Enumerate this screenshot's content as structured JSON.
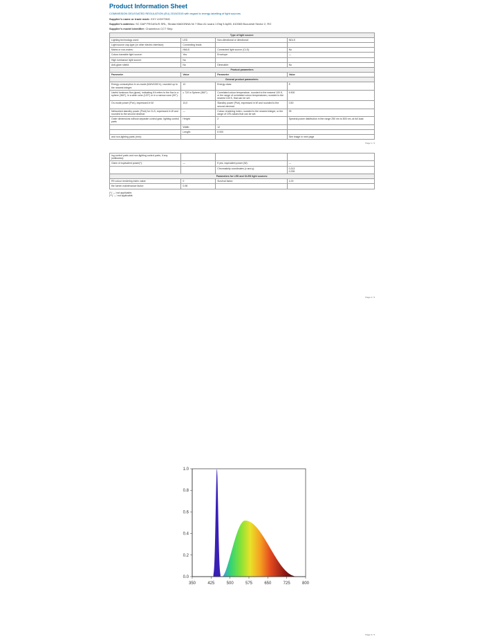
{
  "title": "Product Information Sheet",
  "intro": "COMMISSION DELEGATED REGULATION (EU) 2019/2015 with regard to energy labelling of light sources",
  "supplier_name_label": "Supplier's name or trade mark:",
  "supplier_name": "XXY LIGHTING",
  "supplier_addr_label": "Supplier's address:",
  "supplier_addr": "SC DAP PEGASUS SRL, Strada MADONNA Nr 7 Bloc A1 scara 1 Etaj 5 Ap55, 610083 Bucuresti Sector 2, RO",
  "model_label": "Supplier's model identifier:",
  "model": "Chameleon CCT Strip",
  "section1": "Type of light source:",
  "rows1": [
    [
      "Lighting technology used:",
      "LED",
      "Non-directional or directional:",
      "NDLS"
    ],
    [
      "Light source cap-type (or other electric interface):",
      "Connecting leads",
      "",
      ""
    ],
    [
      "Mains or non-mains:",
      "NMLS",
      "Connected light source (CLS):",
      "No"
    ],
    [
      "Colour-tuneable light source:",
      "Yes",
      "Envelope:",
      "—"
    ],
    [
      "High luminance light source:",
      "No",
      "",
      ""
    ],
    [
      "Anti-glare shield:",
      "No",
      "Dimmable:",
      "No"
    ]
  ],
  "section2": "Product parameters",
  "header2": [
    "Parameter",
    "Value",
    "Parameter",
    "Value"
  ],
  "subsection2": "General product parameters:",
  "rows2": [
    [
      "Energy consumption in on-mode (kWh/1000 h), rounded up to the nearest integer:",
      "10",
      "Energy class:",
      "E"
    ],
    [
      "Useful luminous flux (ɸuse), indicating if it refers to the flux in a sphere (360°), in a wide cone (120°) or in a narrow cone (90°):",
      "≥ 720 in Sphere (360°)",
      "Correlated colour temperature, rounded to the nearest 100 K, or the range of correlated colour temperatures, rounded to the nearest 100 K, that can be set:",
      "6 500"
    ],
    [
      "On-mode power (Pon), expressed in W:",
      "10,0",
      "Standby power (Psb), expressed in W and rounded to the second decimal:",
      "0,50"
    ],
    [
      "Networked standby power (Pnet) for CLS, expressed in W and rounded to the second decimal:",
      "—",
      "Colour rendering index, rounded to the nearest integer, or the range of CRI-values that can be set:",
      "93"
    ],
    [
      "Outer dimensions without separate control gear, lighting control parts",
      "Height:",
      "2",
      "Spectral power distribution in the range 250 nm to 800 nm, at full load:"
    ],
    [
      "",
      "Width:",
      "12",
      ""
    ],
    [
      "",
      "Length:",
      "5 000",
      ""
    ]
  ],
  "spd_note": "See image in next page",
  "rows3": [
    [
      "ing control parts and non-lighting control parts, if any (millimetre):",
      "",
      "",
      ""
    ],
    [
      "Claim of equivalent power(*):",
      "—",
      "If yes, equivalent power (W):",
      "—"
    ],
    [
      "",
      "",
      "Chromaticity coordinates (x and y):",
      "0,313\n0,339"
    ]
  ],
  "section3": "Parameters for LED and OLED light sources:",
  "rows4": [
    [
      "R9 colour rendering index value:",
      "0",
      "Survival factor:",
      "1,00"
    ],
    [
      "the lumen maintenance factor:",
      "0,96",
      "",
      ""
    ]
  ],
  "footnote": "(*) '—':not applicable;\n(**) '—':not applicable;",
  "pg1": "Page 1 / 3",
  "pg2": "Page 2 / 3",
  "pg3": "Page 3 / 3",
  "chart": {
    "type": "spectral-area",
    "background_color": "#ffffff",
    "plot_border_color": "#333333",
    "axis_font_size": 6,
    "xlim": [
      350,
      800
    ],
    "xticks": [
      350,
      425,
      500,
      575,
      650,
      725,
      800
    ],
    "ylim": [
      0,
      1.0
    ],
    "yticks": [
      0.0,
      0.2,
      0.4,
      0.6,
      0.8,
      1.0
    ],
    "blue_peak": {
      "x_center": 448,
      "x_half_width": 14,
      "height": 1.0,
      "color": "#3a1fb5"
    },
    "broad_hump": {
      "x_start": 470,
      "x_peak": 560,
      "x_end": 770,
      "height": 0.52,
      "gradient_stops": [
        {
          "x": 470,
          "color": "#4b8ee8"
        },
        {
          "x": 500,
          "color": "#2fd27a"
        },
        {
          "x": 540,
          "color": "#7fe23a"
        },
        {
          "x": 580,
          "color": "#e8e22a"
        },
        {
          "x": 620,
          "color": "#f5a021"
        },
        {
          "x": 660,
          "color": "#e34a1f"
        },
        {
          "x": 720,
          "color": "#8a1414"
        },
        {
          "x": 770,
          "color": "#3a0606"
        }
      ]
    }
  }
}
